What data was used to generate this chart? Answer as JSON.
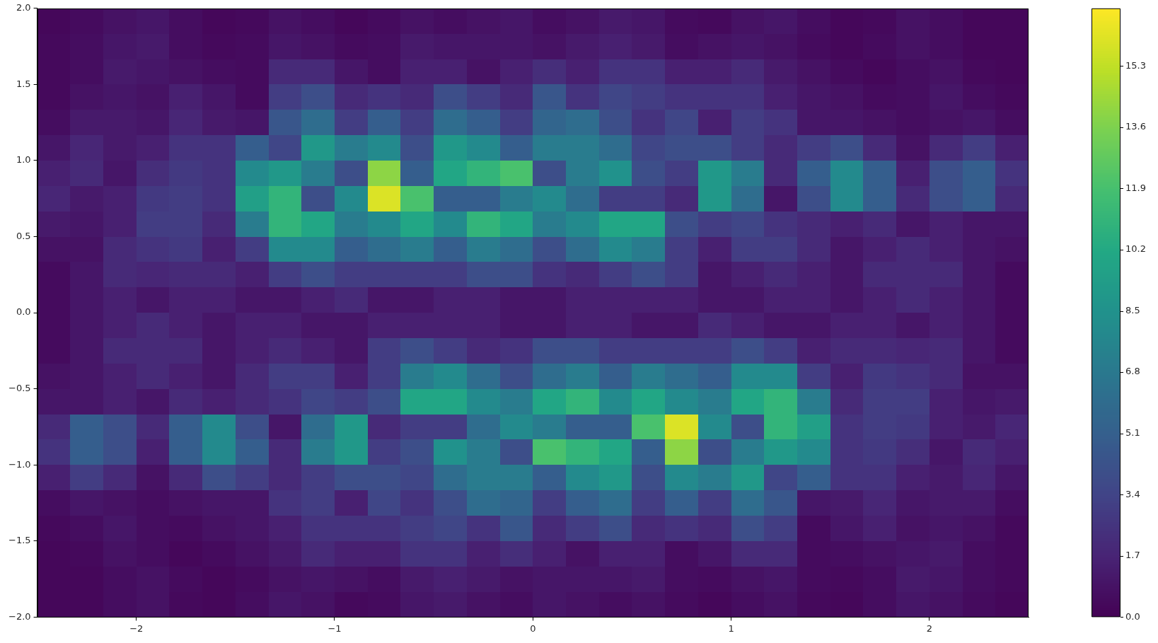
{
  "chart_data": {
    "type": "heatmap",
    "xlim": [
      -2.5,
      2.5
    ],
    "ylim": [
      -2,
      2
    ],
    "xticks": [
      {
        "value": -2,
        "label": "−2"
      },
      {
        "value": -1,
        "label": "−1"
      },
      0,
      1,
      2
    ],
    "yticks": [
      {
        "value": -2,
        "label": "−2.0"
      },
      {
        "value": -1.5,
        "label": "−1.5"
      },
      {
        "value": -1,
        "label": "−1.0"
      },
      {
        "value": -0.5,
        "label": "−0.5"
      },
      {
        "value": 0,
        "label": "0.0"
      },
      0.5,
      {
        "value": 1,
        "label": "1.0"
      },
      1.5,
      {
        "value": 2,
        "label": "2.0"
      }
    ],
    "clim": [
      0,
      16.9
    ],
    "cticks": [
      {
        "value": 0,
        "label": "0.0"
      },
      1.7,
      3.4,
      5.1,
      6.8,
      8.5,
      10.2,
      11.9,
      13.6,
      15.3
    ],
    "cells": [
      [
        0.3,
        0.5,
        0.8,
        1.0,
        0.6,
        0.3,
        0.4,
        0.8,
        0.6,
        0.3,
        0.5,
        0.8,
        0.6,
        0.8,
        1.0,
        0.6,
        0.8,
        1.2,
        1.0,
        0.5,
        0.4,
        0.8,
        1.0,
        0.6,
        0.3,
        0.4,
        0.8,
        0.6,
        0.3,
        0.3
      ],
      [
        0.4,
        0.6,
        1.0,
        1.2,
        0.6,
        0.4,
        0.5,
        1.0,
        0.8,
        0.5,
        0.6,
        1.2,
        1.0,
        1.0,
        1.0,
        0.8,
        1.2,
        1.5,
        1.2,
        0.6,
        0.8,
        1.0,
        0.8,
        0.5,
        0.3,
        0.5,
        0.8,
        0.6,
        0.3,
        0.3
      ],
      [
        0.4,
        0.6,
        1.2,
        1.0,
        0.8,
        0.6,
        0.5,
        2.0,
        2.0,
        1.0,
        0.6,
        1.5,
        1.5,
        0.8,
        1.5,
        2.2,
        1.5,
        2.5,
        2.5,
        1.5,
        1.5,
        2.0,
        1.2,
        0.8,
        0.5,
        0.3,
        0.6,
        0.8,
        0.4,
        0.3
      ],
      [
        0.4,
        0.8,
        1.0,
        0.8,
        1.5,
        1.0,
        0.5,
        3.0,
        4.0,
        2.0,
        2.5,
        2.0,
        4.0,
        3.0,
        2.0,
        4.5,
        2.5,
        3.5,
        3.0,
        2.5,
        2.5,
        2.5,
        1.5,
        1.0,
        0.8,
        0.5,
        0.6,
        1.0,
        0.6,
        0.4
      ],
      [
        0.6,
        1.2,
        1.2,
        1.0,
        1.8,
        1.2,
        1.0,
        4.5,
        6.0,
        3.0,
        5.0,
        3.0,
        6.0,
        5.0,
        3.0,
        5.5,
        6.0,
        4.0,
        2.5,
        3.5,
        1.5,
        3.0,
        2.5,
        1.0,
        1.0,
        0.8,
        0.6,
        0.8,
        1.0,
        0.6
      ],
      [
        1.0,
        1.8,
        1.2,
        1.5,
        2.5,
        2.5,
        5.0,
        3.5,
        9.0,
        7.0,
        8.0,
        4.0,
        9.0,
        8.0,
        5.0,
        7.0,
        7.0,
        6.0,
        3.5,
        4.0,
        4.0,
        3.0,
        2.0,
        3.0,
        4.0,
        2.0,
        0.8,
        2.0,
        3.0,
        1.5
      ],
      [
        1.5,
        2.0,
        1.0,
        2.2,
        2.8,
        2.5,
        8.0,
        9.0,
        7.0,
        4.0,
        14.0,
        5.0,
        10.0,
        11.0,
        12.0,
        4.0,
        7.0,
        8.5,
        4.0,
        3.0,
        9.0,
        7.0,
        2.0,
        5.0,
        8.0,
        5.0,
        1.5,
        4.0,
        5.0,
        2.5
      ],
      [
        1.8,
        1.2,
        1.5,
        2.8,
        3.0,
        2.5,
        9.5,
        11.0,
        4.0,
        8.0,
        16.0,
        12.0,
        5.0,
        5.0,
        7.0,
        8.0,
        6.0,
        3.0,
        3.0,
        2.0,
        9.0,
        6.0,
        1.0,
        4.0,
        8.0,
        5.0,
        2.0,
        4.0,
        5.0,
        2.0
      ],
      [
        1.2,
        1.0,
        1.5,
        3.0,
        3.0,
        2.0,
        7.0,
        11.0,
        10.0,
        7.0,
        8.0,
        10.0,
        8.0,
        11.0,
        10.0,
        7.0,
        8.0,
        10.0,
        10.0,
        4.0,
        3.0,
        3.5,
        2.5,
        2.0,
        1.5,
        2.0,
        1.0,
        1.5,
        1.0,
        1.0
      ],
      [
        0.8,
        0.8,
        2.0,
        2.5,
        2.8,
        1.5,
        3.0,
        8.0,
        8.0,
        5.0,
        6.0,
        7.0,
        5.0,
        7.0,
        6.0,
        4.0,
        6.0,
        8.0,
        7.0,
        3.0,
        1.5,
        3.0,
        3.0,
        2.0,
        1.0,
        1.5,
        2.0,
        1.5,
        1.0,
        0.8
      ],
      [
        0.5,
        1.0,
        2.0,
        1.8,
        2.0,
        2.0,
        1.5,
        3.0,
        4.0,
        3.0,
        3.0,
        3.0,
        3.0,
        4.0,
        4.0,
        2.5,
        2.0,
        3.0,
        4.0,
        3.0,
        1.0,
        1.5,
        2.0,
        1.5,
        1.0,
        2.0,
        2.0,
        2.0,
        1.0,
        0.5
      ],
      [
        0.5,
        1.0,
        1.5,
        1.0,
        1.5,
        1.5,
        1.0,
        1.0,
        1.5,
        2.0,
        1.0,
        1.0,
        1.5,
        1.5,
        1.0,
        1.0,
        1.5,
        1.5,
        1.5,
        1.5,
        1.0,
        1.0,
        1.5,
        1.5,
        1.0,
        1.5,
        2.0,
        1.5,
        1.0,
        0.5
      ],
      [
        0.5,
        1.0,
        1.5,
        2.0,
        1.5,
        1.0,
        1.5,
        1.5,
        1.0,
        1.0,
        1.5,
        1.5,
        1.5,
        1.5,
        1.0,
        1.0,
        1.5,
        1.5,
        1.0,
        1.0,
        2.0,
        1.5,
        1.0,
        1.0,
        1.5,
        1.5,
        1.0,
        1.5,
        1.0,
        0.5
      ],
      [
        0.5,
        1.0,
        2.0,
        2.0,
        2.0,
        1.0,
        1.5,
        2.0,
        1.5,
        1.0,
        3.0,
        4.0,
        3.0,
        2.0,
        2.5,
        4.0,
        4.0,
        3.0,
        3.0,
        3.0,
        3.0,
        4.0,
        3.0,
        1.5,
        2.0,
        2.0,
        1.8,
        2.0,
        1.0,
        0.5
      ],
      [
        0.8,
        1.0,
        1.5,
        2.0,
        1.5,
        1.0,
        2.0,
        3.0,
        3.0,
        1.5,
        3.0,
        7.0,
        8.0,
        6.0,
        4.0,
        6.0,
        7.0,
        5.0,
        7.0,
        6.0,
        5.0,
        8.0,
        8.0,
        3.0,
        1.5,
        2.8,
        2.5,
        2.0,
        0.8,
        0.8
      ],
      [
        1.0,
        1.0,
        1.5,
        1.0,
        2.0,
        1.5,
        2.0,
        2.5,
        3.5,
        3.0,
        4.0,
        10.0,
        10.0,
        8.0,
        7.0,
        10.0,
        11.0,
        8.0,
        10.0,
        8.0,
        7.0,
        10.0,
        11.0,
        7.0,
        2.0,
        3.0,
        3.0,
        1.5,
        1.0,
        1.2
      ],
      [
        2.0,
        5.0,
        4.0,
        2.0,
        5.0,
        8.0,
        4.0,
        1.0,
        6.0,
        9.0,
        2.0,
        3.0,
        3.0,
        6.0,
        8.0,
        7.0,
        5.0,
        5.0,
        12.0,
        16.0,
        8.0,
        4.0,
        11.0,
        9.5,
        2.5,
        3.0,
        2.8,
        1.5,
        1.2,
        1.8
      ],
      [
        2.5,
        5.0,
        4.0,
        1.5,
        5.0,
        8.0,
        5.0,
        2.0,
        7.0,
        9.0,
        3.0,
        4.0,
        8.5,
        7.0,
        4.0,
        12.0,
        11.0,
        10.0,
        5.0,
        14.0,
        4.0,
        7.0,
        9.0,
        8.0,
        2.5,
        2.8,
        2.2,
        1.0,
        2.0,
        1.5
      ],
      [
        1.5,
        3.0,
        2.0,
        0.8,
        2.0,
        4.0,
        3.0,
        2.0,
        3.0,
        4.0,
        4.0,
        3.5,
        6.0,
        7.0,
        7.0,
        5.0,
        8.0,
        9.0,
        4.0,
        8.0,
        7.0,
        9.0,
        3.5,
        5.0,
        2.5,
        2.5,
        1.5,
        1.2,
        1.8,
        1.0
      ],
      [
        0.6,
        1.0,
        0.8,
        0.6,
        0.8,
        1.0,
        1.0,
        2.5,
        3.0,
        1.5,
        3.5,
        2.5,
        4.0,
        6.0,
        5.5,
        3.0,
        5.0,
        6.0,
        3.0,
        5.0,
        3.0,
        6.0,
        4.5,
        1.0,
        1.2,
        1.8,
        1.0,
        1.2,
        1.2,
        0.6
      ],
      [
        0.4,
        0.6,
        1.0,
        0.6,
        0.5,
        0.8,
        1.0,
        1.5,
        2.5,
        2.5,
        2.5,
        3.0,
        3.5,
        2.5,
        4.5,
        2.0,
        3.0,
        4.0,
        2.0,
        2.5,
        2.0,
        4.0,
        3.0,
        0.5,
        1.0,
        1.5,
        0.8,
        1.0,
        0.8,
        0.4
      ],
      [
        0.3,
        0.4,
        0.8,
        0.6,
        0.3,
        0.5,
        0.8,
        1.2,
        2.0,
        1.5,
        1.5,
        2.5,
        2.5,
        1.5,
        2.2,
        1.5,
        0.8,
        1.5,
        1.5,
        0.6,
        1.0,
        2.0,
        2.0,
        0.5,
        0.6,
        0.8,
        1.0,
        1.2,
        0.6,
        0.4
      ],
      [
        0.3,
        0.3,
        0.6,
        0.8,
        0.5,
        0.3,
        0.5,
        0.8,
        1.0,
        0.8,
        0.6,
        1.2,
        1.5,
        1.2,
        0.8,
        1.0,
        1.0,
        1.0,
        1.2,
        0.6,
        0.5,
        0.8,
        1.0,
        0.5,
        0.4,
        0.6,
        1.2,
        1.0,
        0.6,
        0.4
      ],
      [
        0.3,
        0.3,
        0.6,
        0.8,
        0.4,
        0.3,
        0.6,
        1.0,
        0.8,
        0.4,
        0.5,
        1.0,
        1.2,
        0.8,
        0.6,
        1.0,
        0.8,
        0.6,
        0.8,
        0.5,
        0.3,
        0.6,
        0.8,
        0.4,
        0.3,
        0.6,
        1.0,
        0.8,
        0.5,
        0.3
      ]
    ]
  }
}
